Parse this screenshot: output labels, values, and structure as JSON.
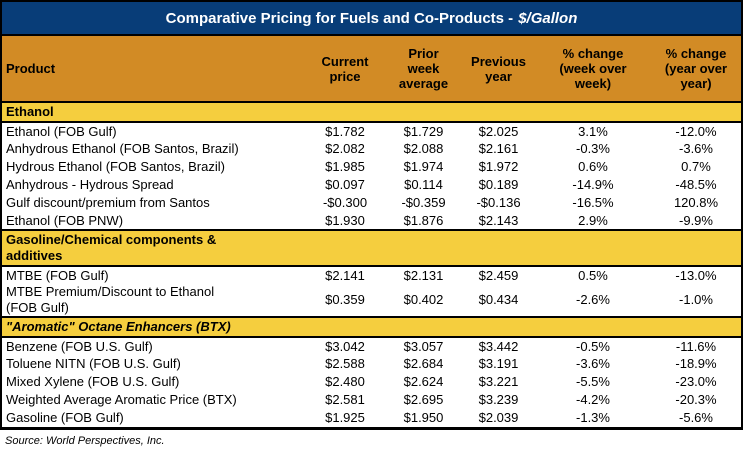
{
  "title": {
    "main": "Comparative Pricing for Fuels and Co-Products -",
    "unit": "$/Gallon"
  },
  "colors": {
    "title_bar": "#083D78",
    "header": "#D28B25",
    "section": "#F5CE3E"
  },
  "columns": [
    {
      "label": "Product"
    },
    {
      "label": "Current\nprice"
    },
    {
      "label": "Prior\nweek\naverage"
    },
    {
      "label": "Previous\nyear"
    },
    {
      "label": "% change\n(week over\nweek)"
    },
    {
      "label": "% change\n(year over\nyear)"
    }
  ],
  "sections": [
    {
      "header": "Ethanol",
      "italic": false,
      "rows": [
        {
          "product": "Ethanol (FOB Gulf)",
          "values": [
            "$1.782",
            "$1.729",
            "$2.025",
            "3.1%",
            "-12.0%"
          ]
        },
        {
          "product": "Anhydrous Ethanol (FOB Santos, Brazil)",
          "values": [
            "$2.082",
            "$2.088",
            "$2.161",
            "-0.3%",
            "-3.6%"
          ]
        },
        {
          "product": "Hydrous Ethanol (FOB Santos, Brazil)",
          "values": [
            "$1.985",
            "$1.974",
            "$1.972",
            "0.6%",
            "0.7%"
          ]
        },
        {
          "product": "Anhydrous - Hydrous Spread",
          "values": [
            "$0.097",
            "$0.114",
            "$0.189",
            "-14.9%",
            "-48.5%"
          ]
        },
        {
          "product": "Gulf discount/premium from Santos",
          "values": [
            "-$0.300",
            "-$0.359",
            "-$0.136",
            "-16.5%",
            "120.8%"
          ]
        },
        {
          "product": "Ethanol (FOB PNW)",
          "values": [
            "$1.930",
            "$1.876",
            "$2.143",
            "2.9%",
            "-9.9%"
          ]
        }
      ]
    },
    {
      "header": "Gasoline/Chemical components &\nadditives",
      "italic": false,
      "rows": [
        {
          "product": "MTBE (FOB Gulf)",
          "values": [
            "$2.141",
            "$2.131",
            "$2.459",
            "0.5%",
            "-13.0%"
          ]
        },
        {
          "product": "MTBE Premium/Discount to Ethanol\n(FOB Gulf)",
          "values": [
            "$0.359",
            "$0.402",
            "$0.434",
            "-2.6%",
            "-1.0%"
          ]
        }
      ]
    },
    {
      "header": "\"Aromatic\" Octane Enhancers (BTX)",
      "italic": true,
      "rows": [
        {
          "product": "Benzene (FOB U.S. Gulf)",
          "values": [
            "$3.042",
            "$3.057",
            "$3.442",
            "-0.5%",
            "-11.6%"
          ]
        },
        {
          "product": "Toluene NITN (FOB U.S. Gulf)",
          "values": [
            "$2.588",
            "$2.684",
            "$3.191",
            "-3.6%",
            "-18.9%"
          ]
        },
        {
          "product": "Mixed Xylene (FOB U.S. Gulf)",
          "values": [
            "$2.480",
            "$2.624",
            "$3.221",
            "-5.5%",
            "-23.0%"
          ]
        },
        {
          "product": "Weighted Average Aromatic Price (BTX)",
          "values": [
            "$2.581",
            "$2.695",
            "$3.239",
            "-4.2%",
            "-20.3%"
          ]
        },
        {
          "product": "Gasoline (FOB Gulf)",
          "values": [
            "$1.925",
            "$1.950",
            "$2.039",
            "-1.3%",
            "-5.6%"
          ]
        }
      ]
    }
  ],
  "source": "Source: World Perspectives, Inc."
}
